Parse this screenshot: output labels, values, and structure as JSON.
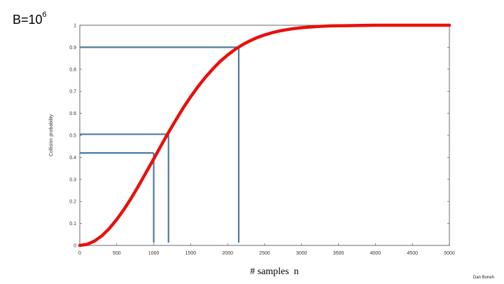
{
  "slide": {
    "title_base": "B=10",
    "title_exp": "6",
    "attribution": "Dan Boneh"
  },
  "chart_data": {
    "type": "line",
    "title": "B=10^6",
    "xlabel": "# samples  n",
    "ylabel": "Collision probability",
    "xlim": [
      0,
      5000
    ],
    "ylim": [
      0,
      1
    ],
    "x_ticks": [
      "0",
      "500",
      "1000",
      "1500",
      "2000",
      "2500",
      "3000",
      "3500",
      "4000",
      "4500",
      "5000"
    ],
    "y_ticks": [
      "0",
      "0.1",
      "0.2",
      "0.3",
      "0.4",
      "0.5",
      "0.6",
      "0.7",
      "0.8",
      "0.9",
      "1"
    ],
    "grid": false,
    "series": [
      {
        "color": "#e8100c",
        "x": [
          0,
          100,
          200,
          300,
          400,
          500,
          600,
          700,
          800,
          900,
          1000,
          1100,
          1200,
          1300,
          1400,
          1500,
          1600,
          1700,
          1800,
          1900,
          2000,
          2100,
          2200,
          2300,
          2400,
          2500,
          2600,
          2700,
          2800,
          2900,
          3000,
          3200,
          3400,
          3600,
          3800,
          4000,
          4250,
          4500,
          4750,
          5000
        ],
        "y": [
          0,
          0.005,
          0.02,
          0.044,
          0.077,
          0.118,
          0.165,
          0.217,
          0.274,
          0.333,
          0.393,
          0.454,
          0.513,
          0.57,
          0.625,
          0.675,
          0.722,
          0.764,
          0.802,
          0.836,
          0.865,
          0.89,
          0.911,
          0.929,
          0.944,
          0.956,
          0.966,
          0.974,
          0.98,
          0.985,
          0.989,
          0.994,
          0.997,
          0.998,
          0.999,
          1.0,
          1.0,
          1.0,
          1.0,
          1.0
        ]
      }
    ],
    "annotations": [
      {
        "x": 1000,
        "y": 0.42
      },
      {
        "x": 1200,
        "y": 0.505
      },
      {
        "x": 2150,
        "y": 0.9
      }
    ],
    "annotation_color": "#4a7ba6"
  }
}
